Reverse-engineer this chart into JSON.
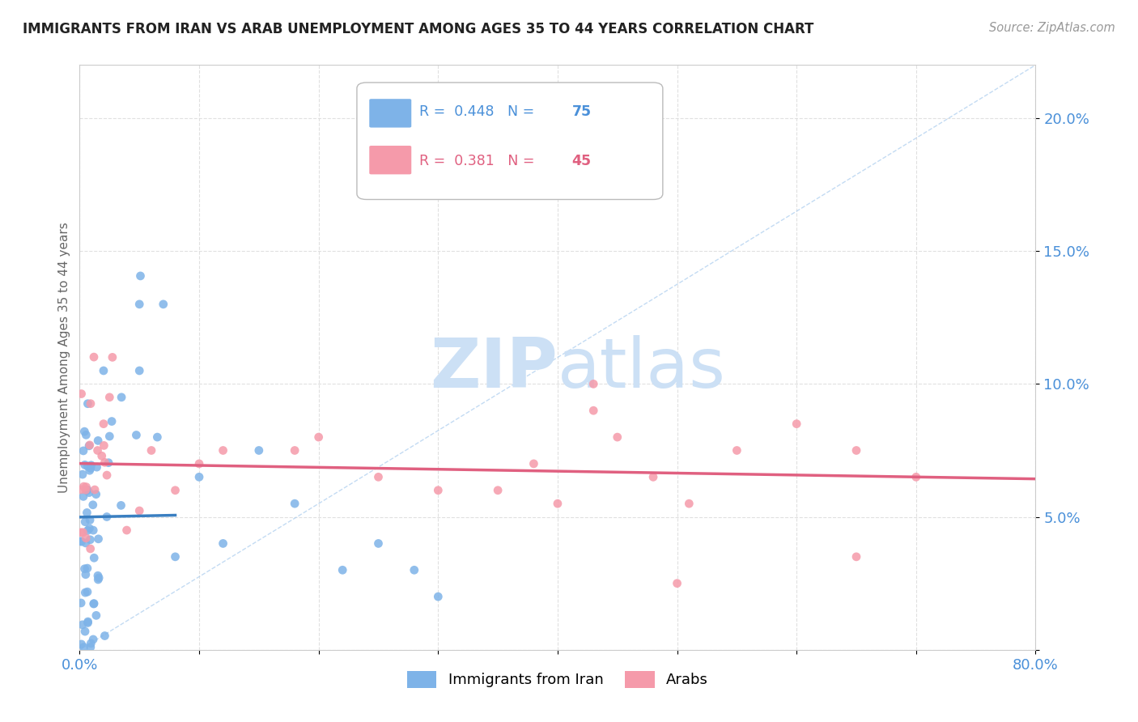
{
  "title": "IMMIGRANTS FROM IRAN VS ARAB UNEMPLOYMENT AMONG AGES 35 TO 44 YEARS CORRELATION CHART",
  "source": "Source: ZipAtlas.com",
  "ylabel": "Unemployment Among Ages 35 to 44 years",
  "xmin": 0.0,
  "xmax": 0.8,
  "ymin": 0.0,
  "ymax": 0.22,
  "iran_R": 0.448,
  "iran_N": 75,
  "arab_R": 0.381,
  "arab_N": 45,
  "iran_color": "#7eb3e8",
  "arab_color": "#f59aaa",
  "iran_line_color": "#3a7fc1",
  "arab_line_color": "#e06080",
  "trend_line_color": "#aaaaaa",
  "background_color": "#ffffff",
  "watermark_color": "#cce0f5",
  "grid_color": "#dddddd",
  "title_color": "#222222",
  "axis_color": "#4a90d9",
  "ylabel_color": "#666666"
}
